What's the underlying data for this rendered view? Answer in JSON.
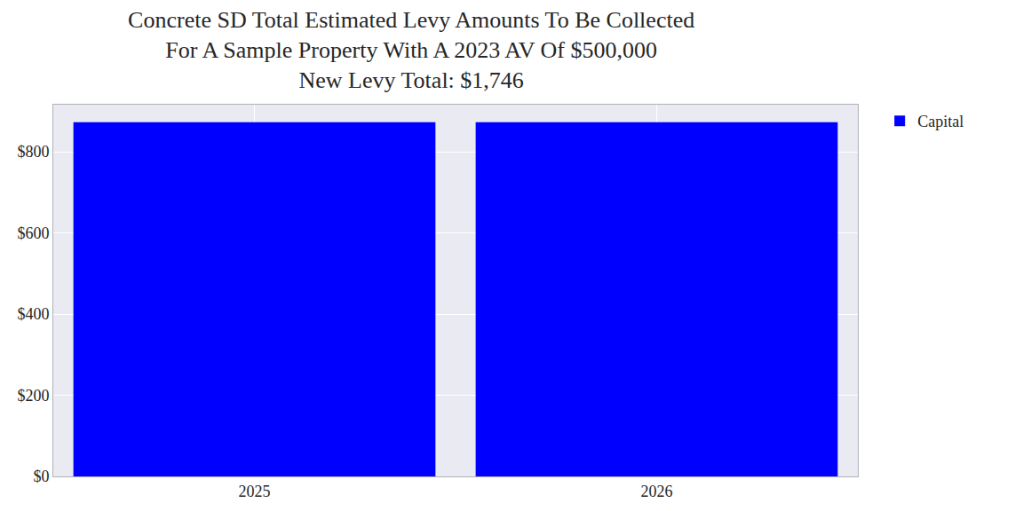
{
  "chart_data": {
    "type": "bar",
    "title": "Concrete SD Total Estimated Levy Amounts To Be Collected\nFor A Sample Property With A 2023 AV Of $500,000\nNew Levy Total: $1,746",
    "categories": [
      "2025",
      "2026"
    ],
    "series": [
      {
        "name": "Capital",
        "color": "#0000ff",
        "values": [
          873,
          873
        ]
      }
    ],
    "ylim": [
      0,
      916
    ],
    "yticks": [
      {
        "value": 0,
        "label": "$0"
      },
      {
        "value": 200,
        "label": "$200"
      },
      {
        "value": 400,
        "label": "$400"
      },
      {
        "value": 600,
        "label": "$600"
      },
      {
        "value": 800,
        "label": "$800"
      }
    ],
    "grid": true,
    "legend": "right"
  }
}
